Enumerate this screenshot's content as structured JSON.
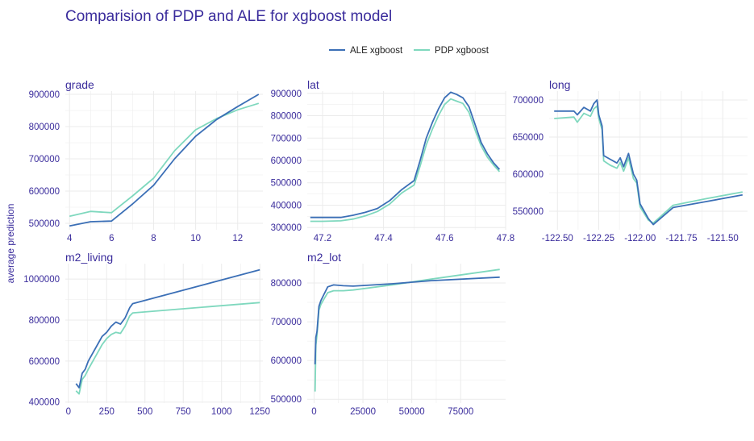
{
  "chart_data": {
    "type": "line",
    "title": "Comparision of PDP and ALE for xgboost model",
    "ylabel": "average prediction",
    "legend_position": "top-center",
    "series_styles": [
      {
        "name": "ALE xgboost",
        "color": "#3B6FB6"
      },
      {
        "name": "PDP xgboost",
        "color": "#7FD8BE"
      }
    ],
    "colors": {
      "title": "#3A2C9C",
      "axis_text": "#3A2C9C",
      "grid": "#EBEBEB",
      "legend_text": "#222222"
    },
    "panels": [
      {
        "title": "grade",
        "xlim": [
          3.8,
          13.2
        ],
        "ylim": [
          480000,
          910000
        ],
        "xticks": [
          4,
          6,
          8,
          10,
          12
        ],
        "xtick_labels": [
          "4",
          "6",
          "8",
          "10",
          "12"
        ],
        "yticks": [
          500000,
          600000,
          700000,
          800000,
          900000
        ],
        "ytick_labels": [
          "500000",
          "600000",
          "700000",
          "800000",
          "900000"
        ],
        "series": [
          {
            "name": "ALE xgboost",
            "x": [
              4,
              5,
              6,
              7,
              8,
              9,
              10,
              11,
              12,
              13
            ],
            "y": [
              492000,
              505000,
              507000,
              560000,
              618000,
              700000,
              770000,
              822000,
              862000,
              900000
            ]
          },
          {
            "name": "PDP xgboost",
            "x": [
              4,
              5,
              6,
              7,
              8,
              9,
              10,
              11,
              12,
              13
            ],
            "y": [
              522000,
              537000,
              533000,
              585000,
              640000,
              725000,
              790000,
              825000,
              852000,
              872000
            ]
          }
        ]
      },
      {
        "title": "lat",
        "xlim": [
          47.15,
          47.8
        ],
        "ylim": [
          290000,
          910000
        ],
        "xticks": [
          47.2,
          47.4,
          47.6,
          47.8
        ],
        "xtick_labels": [
          "47.2",
          "47.4",
          "47.6",
          "47.8"
        ],
        "yticks": [
          300000,
          400000,
          500000,
          600000,
          700000,
          800000,
          900000
        ],
        "ytick_labels": [
          "300000",
          "400000",
          "500000",
          "600000",
          "700000",
          "800000",
          "900000"
        ],
        "series": [
          {
            "name": "ALE xgboost",
            "x": [
              47.16,
              47.2,
              47.26,
              47.3,
              47.34,
              47.38,
              47.42,
              47.46,
              47.5,
              47.52,
              47.54,
              47.56,
              47.58,
              47.6,
              47.62,
              47.64,
              47.66,
              47.68,
              47.7,
              47.72,
              47.74,
              47.76,
              47.78
            ],
            "y": [
              345000,
              345000,
              345000,
              355000,
              368000,
              385000,
              420000,
              470000,
              510000,
              600000,
              700000,
              770000,
              830000,
              880000,
              905000,
              895000,
              880000,
              840000,
              760000,
              680000,
              630000,
              590000,
              560000
            ]
          },
          {
            "name": "PDP xgboost",
            "x": [
              47.16,
              47.2,
              47.26,
              47.3,
              47.34,
              47.38,
              47.42,
              47.46,
              47.5,
              47.52,
              47.54,
              47.56,
              47.58,
              47.6,
              47.62,
              47.64,
              47.66,
              47.68,
              47.7,
              47.72,
              47.74,
              47.76,
              47.78
            ],
            "y": [
              328000,
              328000,
              330000,
              338000,
              352000,
              372000,
              405000,
              455000,
              490000,
              575000,
              670000,
              740000,
              800000,
              850000,
              875000,
              865000,
              855000,
              815000,
              735000,
              665000,
              615000,
              580000,
              550000
            ]
          }
        ]
      },
      {
        "title": "long",
        "xlim": [
          -122.55,
          -121.35
        ],
        "ylim": [
          525000,
          712000
        ],
        "xticks": [
          -122.5,
          -122.25,
          -122.0,
          -121.75,
          -121.5
        ],
        "xtick_labels": [
          "-122.50",
          "-122.25",
          "-122.00",
          "-121.75",
          "-121.50"
        ],
        "yticks": [
          550000,
          600000,
          650000,
          700000
        ],
        "ytick_labels": [
          "550000",
          "600000",
          "650000",
          "700000"
        ],
        "series": [
          {
            "name": "ALE xgboost",
            "x": [
              -122.52,
              -122.4,
              -122.38,
              -122.34,
              -122.3,
              -122.28,
              -122.26,
              -122.25,
              -122.23,
              -122.22,
              -122.18,
              -122.14,
              -122.12,
              -122.1,
              -122.07,
              -122.04,
              -122.02,
              -122.0,
              -121.95,
              -121.92,
              -121.8,
              -121.6,
              -121.38
            ],
            "y": [
              685000,
              685000,
              680000,
              690000,
              685000,
              695000,
              700000,
              680000,
              665000,
              625000,
              620000,
              615000,
              622000,
              610000,
              628000,
              600000,
              592000,
              560000,
              540000,
              532000,
              555000,
              563000,
              572000
            ]
          },
          {
            "name": "PDP xgboost",
            "x": [
              -122.52,
              -122.4,
              -122.38,
              -122.34,
              -122.3,
              -122.28,
              -122.26,
              -122.25,
              -122.23,
              -122.22,
              -122.18,
              -122.14,
              -122.12,
              -122.1,
              -122.07,
              -122.04,
              -122.02,
              -122.0,
              -121.95,
              -121.92,
              -121.8,
              -121.6,
              -121.38
            ],
            "y": [
              675000,
              677000,
              670000,
              682000,
              678000,
              688000,
              692000,
              675000,
              660000,
              618000,
              612000,
              608000,
              616000,
              604000,
              622000,
              594000,
              588000,
              556000,
              538000,
              534000,
              558000,
              567000,
              576000
            ]
          }
        ]
      },
      {
        "title": "m2_living",
        "xlim": [
          -20,
          1270
        ],
        "ylim": [
          395000,
          1075000
        ],
        "xticks": [
          0,
          250,
          500,
          750,
          1000,
          1250
        ],
        "xtick_labels": [
          "0",
          "250",
          "500",
          "750",
          "1000",
          "1250"
        ],
        "yticks": [
          400000,
          600000,
          800000,
          1000000
        ],
        "ytick_labels": [
          "400000",
          "600000",
          "800000",
          "1000000"
        ],
        "series": [
          {
            "name": "ALE xgboost",
            "x": [
              50,
              70,
              90,
              110,
              130,
              160,
              190,
              220,
              250,
              280,
              310,
              340,
              370,
              400,
              420,
              1250
            ],
            "y": [
              490000,
              470000,
              540000,
              560000,
              600000,
              640000,
              680000,
              720000,
              740000,
              770000,
              790000,
              780000,
              810000,
              860000,
              880000,
              1045000
            ]
          },
          {
            "name": "PDP xgboost",
            "x": [
              50,
              70,
              90,
              110,
              130,
              160,
              190,
              220,
              250,
              280,
              310,
              340,
              370,
              400,
              420,
              1250
            ],
            "y": [
              455000,
              440000,
              510000,
              530000,
              560000,
              600000,
              640000,
              680000,
              710000,
              730000,
              740000,
              735000,
              770000,
              820000,
              835000,
              885000
            ]
          }
        ]
      },
      {
        "title": "m2_lot",
        "xlim": [
          -3500,
          98000
        ],
        "ylim": [
          490000,
          850000
        ],
        "xticks": [
          0,
          25000,
          50000,
          75000
        ],
        "xtick_labels": [
          "0",
          "25000",
          "50000",
          "75000"
        ],
        "yticks": [
          500000,
          600000,
          700000,
          800000
        ],
        "ytick_labels": [
          "500000",
          "600000",
          "700000",
          "800000"
        ],
        "series": [
          {
            "name": "ALE xgboost",
            "x": [
              500,
              900,
              1500,
              2500,
              3500,
              5000,
              7000,
              10000,
              15000,
              20000,
              40000,
              60000,
              95000
            ],
            "y": [
              590000,
              660000,
              675000,
              740000,
              755000,
              770000,
              790000,
              795000,
              793000,
              792000,
              798000,
              806000,
              815000
            ]
          },
          {
            "name": "PDP xgboost",
            "x": [
              500,
              900,
              1500,
              2500,
              3500,
              5000,
              7000,
              10000,
              15000,
              20000,
              40000,
              60000,
              95000
            ],
            "y": [
              520000,
              640000,
              665000,
              730000,
              745000,
              758000,
              775000,
              780000,
              780000,
              782000,
              795000,
              810000,
              835000
            ]
          }
        ]
      }
    ]
  }
}
